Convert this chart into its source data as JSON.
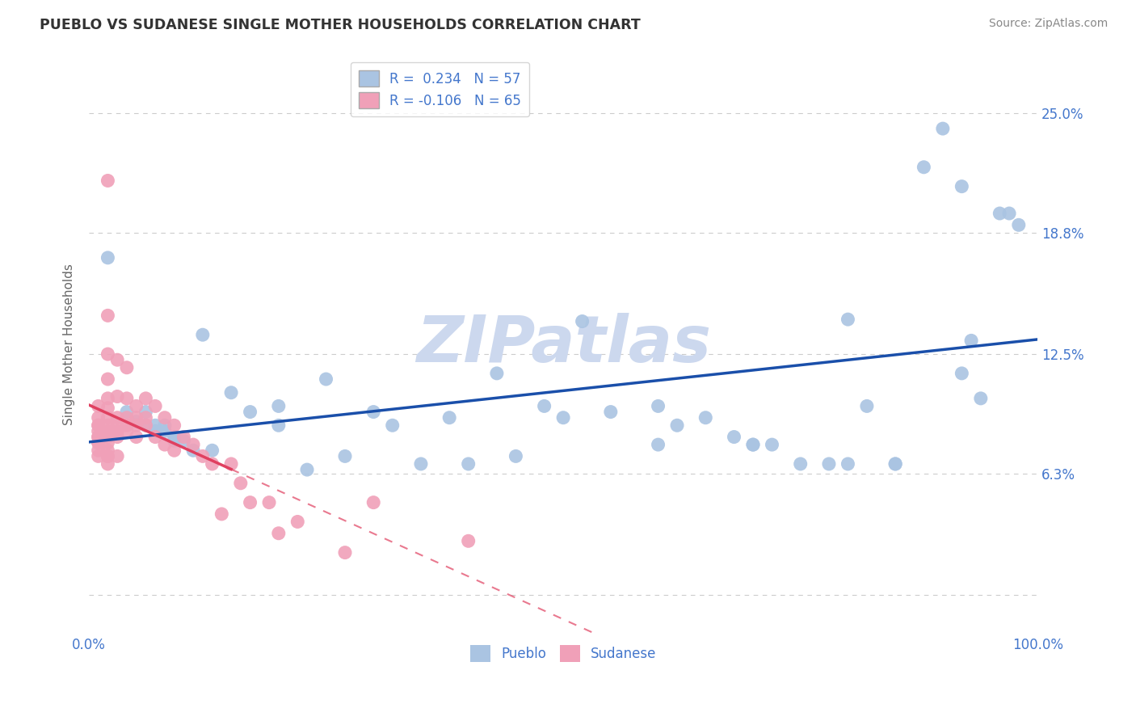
{
  "title": "PUEBLO VS SUDANESE SINGLE MOTHER HOUSEHOLDS CORRELATION CHART",
  "source": "Source: ZipAtlas.com",
  "ylabel": "Single Mother Households",
  "xlim": [
    0.0,
    1.0
  ],
  "ylim": [
    -0.02,
    0.28
  ],
  "yticks": [
    0.0,
    0.063,
    0.125,
    0.188,
    0.25
  ],
  "ytick_labels": [
    "",
    "6.3%",
    "12.5%",
    "18.8%",
    "25.0%"
  ],
  "legend_labels": [
    "Pueblo",
    "Sudanese"
  ],
  "pueblo_color": "#aac4e2",
  "sudanese_color": "#f0a0b8",
  "pueblo_line_color": "#1a4faa",
  "sudanese_line_color": "#e04060",
  "R_pueblo": 0.234,
  "N_pueblo": 57,
  "R_sudanese": -0.106,
  "N_sudanese": 65,
  "pueblo_x": [
    0.02,
    0.04,
    0.05,
    0.06,
    0.07,
    0.08,
    0.09,
    0.1,
    0.11,
    0.12,
    0.13,
    0.15,
    0.17,
    0.2,
    0.23,
    0.27,
    0.3,
    0.35,
    0.38,
    0.4,
    0.45,
    0.5,
    0.52,
    0.55,
    0.6,
    0.62,
    0.65,
    0.68,
    0.7,
    0.72,
    0.75,
    0.78,
    0.8,
    0.82,
    0.85,
    0.88,
    0.9,
    0.92,
    0.93,
    0.94,
    0.96,
    0.97,
    0.98,
    0.6,
    0.7,
    0.8,
    0.85,
    0.92,
    0.48,
    0.43,
    0.25,
    0.32,
    0.2,
    0.08,
    0.06,
    0.07,
    0.09
  ],
  "pueblo_y": [
    0.175,
    0.095,
    0.09,
    0.088,
    0.088,
    0.085,
    0.08,
    0.08,
    0.075,
    0.135,
    0.075,
    0.105,
    0.095,
    0.088,
    0.065,
    0.072,
    0.095,
    0.068,
    0.092,
    0.068,
    0.072,
    0.092,
    0.142,
    0.095,
    0.078,
    0.088,
    0.092,
    0.082,
    0.078,
    0.078,
    0.068,
    0.068,
    0.143,
    0.098,
    0.068,
    0.222,
    0.242,
    0.212,
    0.132,
    0.102,
    0.198,
    0.198,
    0.192,
    0.098,
    0.078,
    0.068,
    0.068,
    0.115,
    0.098,
    0.115,
    0.112,
    0.088,
    0.098,
    0.088,
    0.095,
    0.085,
    0.082
  ],
  "sudanese_x": [
    0.01,
    0.01,
    0.01,
    0.01,
    0.01,
    0.01,
    0.01,
    0.01,
    0.01,
    0.01,
    0.01,
    0.02,
    0.02,
    0.02,
    0.02,
    0.02,
    0.02,
    0.02,
    0.02,
    0.02,
    0.02,
    0.02,
    0.02,
    0.02,
    0.02,
    0.02,
    0.03,
    0.03,
    0.03,
    0.03,
    0.03,
    0.03,
    0.03,
    0.04,
    0.04,
    0.04,
    0.04,
    0.04,
    0.05,
    0.05,
    0.05,
    0.05,
    0.06,
    0.06,
    0.06,
    0.07,
    0.07,
    0.08,
    0.08,
    0.09,
    0.09,
    0.1,
    0.11,
    0.12,
    0.13,
    0.14,
    0.15,
    0.16,
    0.17,
    0.19,
    0.2,
    0.22,
    0.27,
    0.3,
    0.4
  ],
  "sudanese_y": [
    0.098,
    0.092,
    0.088,
    0.088,
    0.085,
    0.082,
    0.082,
    0.079,
    0.079,
    0.075,
    0.072,
    0.215,
    0.145,
    0.125,
    0.112,
    0.102,
    0.097,
    0.092,
    0.088,
    0.085,
    0.082,
    0.079,
    0.075,
    0.072,
    0.072,
    0.068,
    0.122,
    0.103,
    0.092,
    0.088,
    0.085,
    0.082,
    0.072,
    0.118,
    0.102,
    0.092,
    0.088,
    0.085,
    0.098,
    0.092,
    0.088,
    0.082,
    0.102,
    0.092,
    0.088,
    0.098,
    0.082,
    0.092,
    0.078,
    0.088,
    0.075,
    0.082,
    0.078,
    0.072,
    0.068,
    0.042,
    0.068,
    0.058,
    0.048,
    0.048,
    0.032,
    0.038,
    0.022,
    0.048,
    0.028
  ],
  "watermark_text": "ZIPatlas",
  "watermark_color": "#ccd8ee",
  "background_color": "#ffffff",
  "grid_color": "#cccccc",
  "title_color": "#333333",
  "tick_label_color": "#4477cc",
  "axis_label_color": "#666666"
}
